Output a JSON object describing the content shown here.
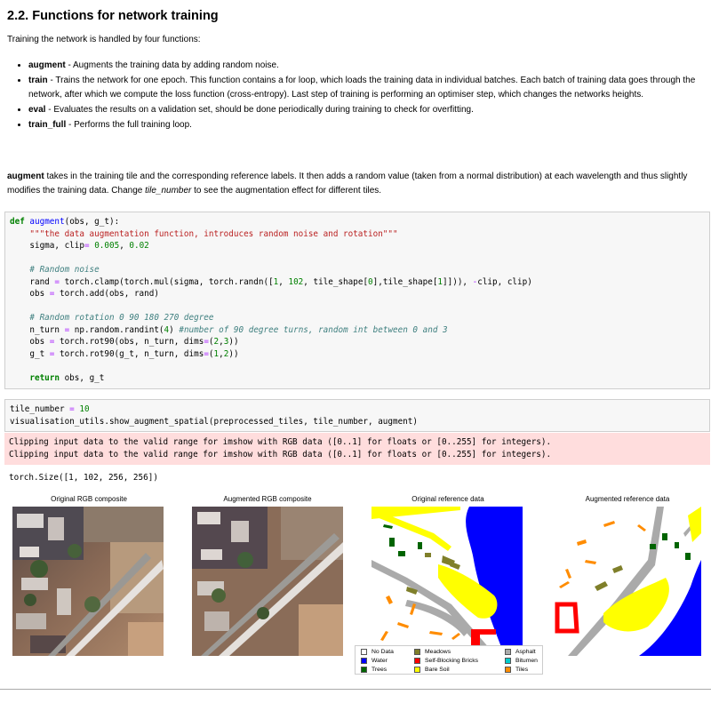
{
  "heading": "2.2. Functions for network training",
  "intro": "Training the network is handled by four functions:",
  "functions": [
    {
      "name": "augment",
      "desc": " - Augments the training data by adding random noise."
    },
    {
      "name": "train",
      "desc": " - Trains the network for one epoch. This function contains a for loop, which loads the training data in individual batches. Each batch of training data goes through the network, after which we compute the loss function (cross-entropy). Last step of training is performing an optimiser step, which changes the networks heights."
    },
    {
      "name": "eval",
      "desc": " - Evaluates the results on a validation set, should be done periodically during training to check for overfitting."
    },
    {
      "name": "train_full",
      "desc": " - Performs the full training loop."
    }
  ],
  "paragraph": {
    "lead": "augment",
    "text1": " takes in the training tile and the corresponding reference labels. It then adds a random value (taken from a normal distribution) at each wavelength and thus slightly modifies the training data. Change ",
    "var": "tile_number",
    "text2": " to see the augmentation effect for different tiles."
  },
  "code_cell_1": [
    "def augment(obs, g_t):",
    "    \"\"\"the data augmentation function, introduces random noise and rotation\"\"\"",
    "    sigma, clip= 0.005, 0.02",
    "",
    "    # Random noise",
    "    rand = torch.clamp(torch.mul(sigma, torch.randn([1, 102, tile_shape[0],tile_shape[1]])), -clip, clip)",
    "    obs = torch.add(obs, rand)",
    "",
    "    # Random rotation 0 90 180 270 degree",
    "    n_turn = np.random.randint(4) #number of 90 degree turns, random int between 0 and 3",
    "    obs = torch.rot90(obs, n_turn, dims=(2,3))",
    "    g_t = torch.rot90(g_t, n_turn, dims=(1,2))",
    "",
    "    return obs, g_t"
  ],
  "code_cell_2": [
    "tile_number = 10",
    "visualisation_utils.show_augment_spatial(preprocessed_tiles, tile_number, augment)"
  ],
  "stderr": [
    "Clipping input data to the valid range for imshow with RGB data ([0..1] for floats or [0..255] for integers).",
    "Clipping input data to the valid range for imshow with RGB data ([0..1] for floats or [0..255] for integers)."
  ],
  "stdout": "torch.Size([1, 102, 256, 256])",
  "panels": [
    {
      "title": "Original RGB composite"
    },
    {
      "title": "Augmented RGB composite"
    },
    {
      "title": "Original reference data"
    },
    {
      "title": "Augmented reference data"
    }
  ],
  "legend": [
    {
      "label": "No Data",
      "color": "#ffffff"
    },
    {
      "label": "Water",
      "color": "#0000ff"
    },
    {
      "label": "Trees",
      "color": "#006400"
    },
    {
      "label": "Meadows",
      "color": "#7f7f2a"
    },
    {
      "label": "Self-Blocking Bricks",
      "color": "#ff0000"
    },
    {
      "label": "Bare Soil",
      "color": "#ffff00"
    },
    {
      "label": "Asphalt",
      "color": "#aaaaaa"
    },
    {
      "label": "Bitumen",
      "color": "#00cccc"
    },
    {
      "label": "Tiles",
      "color": "#ff8c00"
    }
  ]
}
